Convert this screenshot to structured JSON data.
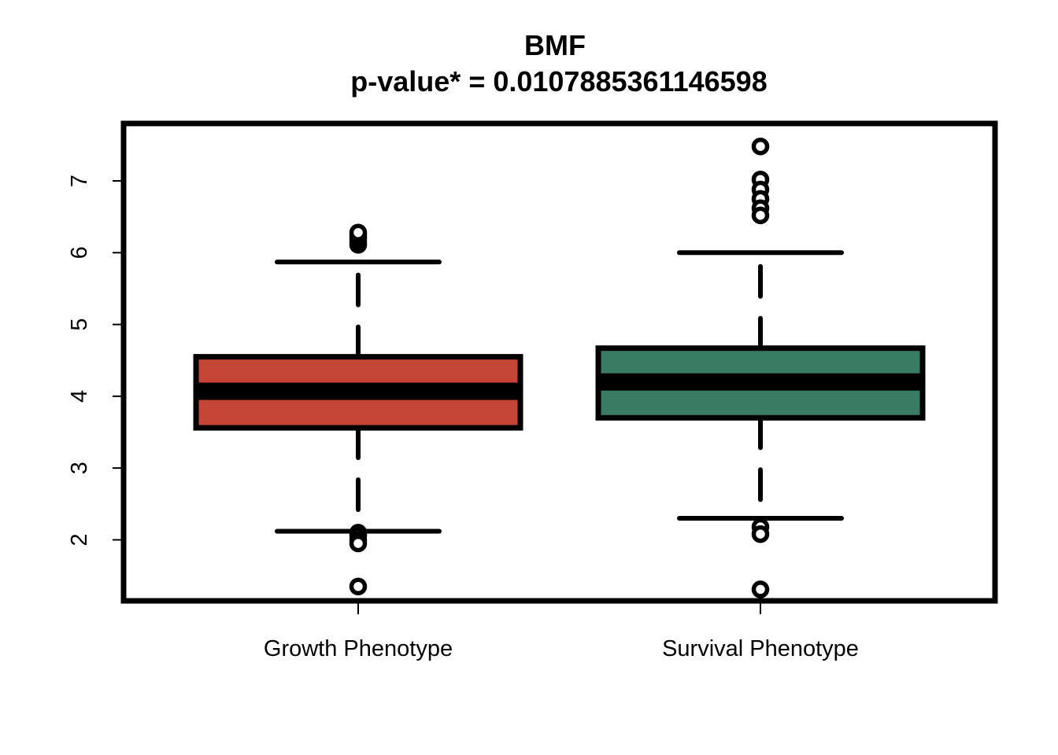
{
  "chart_data": {
    "type": "box",
    "title": "BMF",
    "subtitle": "p-value* = 0.0107885361146598",
    "xlabel": "",
    "ylabel": "",
    "ylim": [
      1.15,
      7.8
    ],
    "yticks": [
      "2",
      "3",
      "4",
      "5",
      "6",
      "7"
    ],
    "grid": false,
    "categories": [
      "Growth Phenotype",
      "Survival Phenotype"
    ],
    "boxes": [
      {
        "category": "Growth Phenotype",
        "color": "#c44536",
        "whisker_low": 2.12,
        "q1": 3.56,
        "median": 4.07,
        "q3": 4.55,
        "whisker_high": 5.87,
        "outliers": [
          6.11,
          6.15,
          6.2,
          6.24,
          6.28,
          2.1,
          2.06,
          2.0,
          1.95,
          1.35
        ]
      },
      {
        "category": "Survival Phenotype",
        "color": "#3a7b63",
        "whisker_low": 2.3,
        "q1": 3.7,
        "median": 4.2,
        "q3": 4.67,
        "whisker_high": 6.0,
        "outliers": [
          7.48,
          7.02,
          6.88,
          6.75,
          6.62,
          6.52,
          2.18,
          2.08,
          1.31
        ]
      }
    ]
  }
}
